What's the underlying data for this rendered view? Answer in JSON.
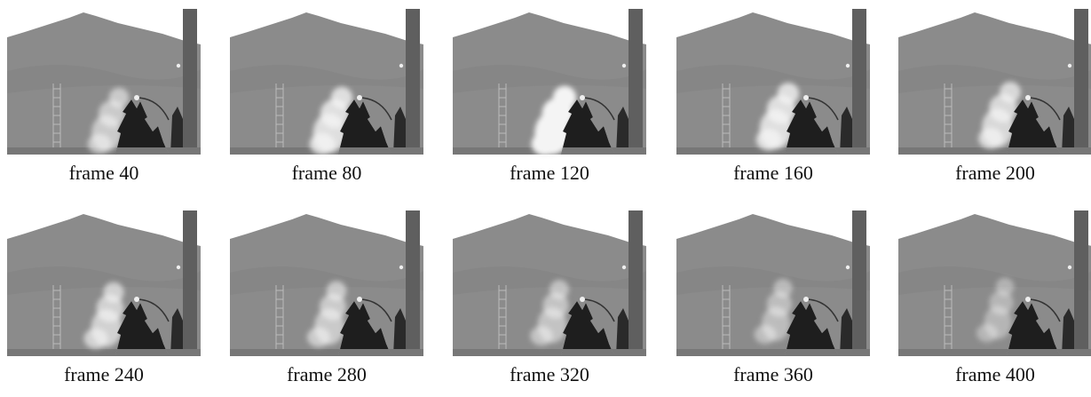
{
  "frames": [
    {
      "caption": "frame 40"
    },
    {
      "caption": "frame 80"
    },
    {
      "caption": "frame 120"
    },
    {
      "caption": "frame 160"
    },
    {
      "caption": "frame 200"
    },
    {
      "caption": "frame 240"
    },
    {
      "caption": "frame 280"
    },
    {
      "caption": "frame 320"
    },
    {
      "caption": "frame 360"
    },
    {
      "caption": "frame 400"
    }
  ]
}
